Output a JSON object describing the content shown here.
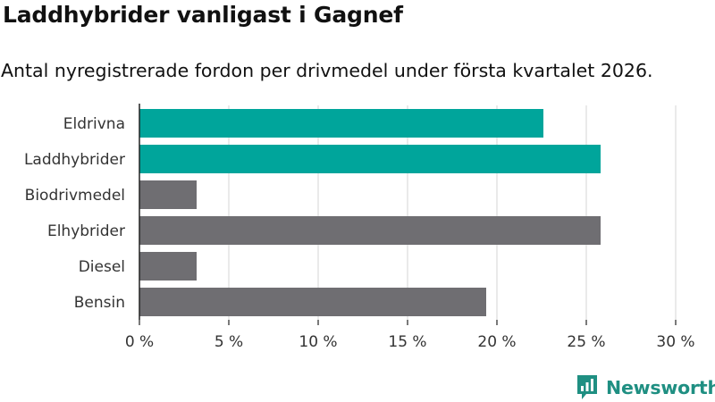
{
  "header": {
    "title": "Laddhybrider vanligast i Gagnef",
    "subtitle": "Antal nyregistrerade fordon per drivmedel under första kvartalet 2026."
  },
  "brand": {
    "name": "Newsworthy",
    "icon": "newsworthy-logo-icon",
    "color": "#1f8f82"
  },
  "colors": {
    "highlight": "#00a59b",
    "default": "#6f6e72",
    "grid": "#dddddd"
  },
  "chart_data": {
    "type": "bar",
    "orientation": "horizontal",
    "categories": [
      "Eldrivna",
      "Laddhybrider",
      "Biodrivmedel",
      "Elhybrider",
      "Diesel",
      "Bensin"
    ],
    "values": [
      22.6,
      25.8,
      3.2,
      25.8,
      3.2,
      19.4
    ],
    "highlighted": [
      true,
      true,
      false,
      false,
      false,
      false
    ],
    "xlim": [
      0,
      30
    ],
    "ticks": [
      0,
      5,
      10,
      15,
      20,
      25,
      30
    ],
    "tick_labels": [
      "0 %",
      "5 %",
      "10 %",
      "15 %",
      "20 %",
      "25 %",
      "30 %"
    ],
    "title": "Laddhybrider vanligast i Gagnef",
    "xlabel": "",
    "ylabel": "",
    "grid": true
  }
}
